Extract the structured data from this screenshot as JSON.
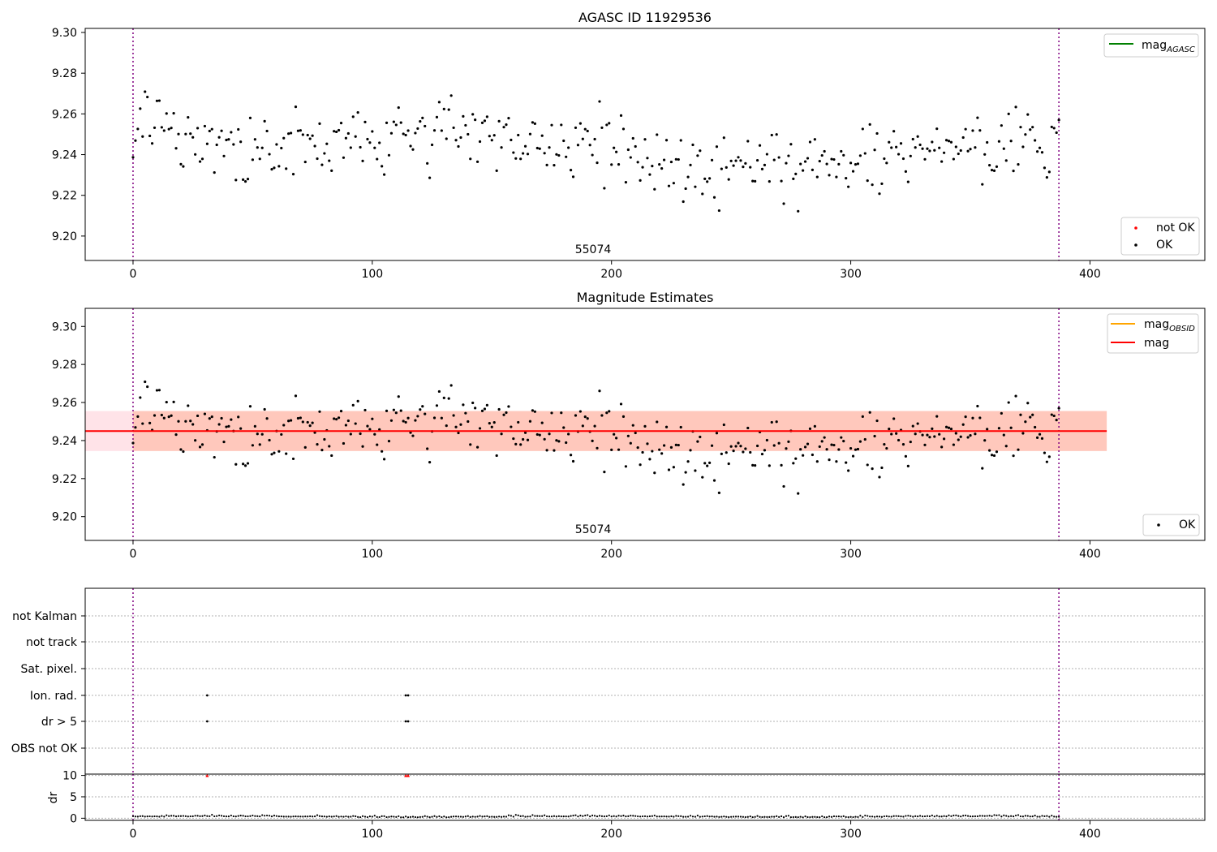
{
  "chart_data": [
    {
      "type": "scatter",
      "title": "AGASC ID 11929536",
      "xlabel": "",
      "ylabel": "",
      "xlim": [
        -20,
        448
      ],
      "ylim": [
        9.188,
        9.302
      ],
      "x_ticks": [
        0,
        100,
        200,
        300,
        400
      ],
      "y_ticks": [
        9.2,
        9.22,
        9.24,
        9.26,
        9.28,
        9.3
      ],
      "x_tick_labels": [
        "0",
        "100",
        "200",
        "300",
        "400"
      ],
      "y_tick_labels": [
        "9.20",
        "9.22",
        "9.24",
        "9.26",
        "9.28",
        "9.30"
      ],
      "vlines": [
        0,
        387
      ],
      "annotation": "55074",
      "legend_lines": [
        {
          "label": "mag",
          "sub": "AGASC",
          "color": "#008000"
        }
      ],
      "legend_points": [
        {
          "label": "not OK",
          "color": "#ff0000"
        },
        {
          "label": "OK",
          "color": "#000000"
        }
      ],
      "legend_placement": [
        "top-right",
        "bottom-right"
      ]
    },
    {
      "type": "scatter",
      "title": "Magnitude Estimates",
      "xlabel": "",
      "ylabel": "",
      "xlim": [
        -20,
        448
      ],
      "ylim": [
        9.1875,
        9.3095
      ],
      "x_ticks": [
        0,
        100,
        200,
        300,
        400
      ],
      "y_ticks": [
        9.2,
        9.22,
        9.24,
        9.26,
        9.28,
        9.3
      ],
      "x_tick_labels": [
        "0",
        "100",
        "200",
        "300",
        "400"
      ],
      "y_tick_labels": [
        "9.20",
        "9.22",
        "9.24",
        "9.26",
        "9.28",
        "9.30"
      ],
      "vlines": [
        0,
        387
      ],
      "annotation": "55074",
      "mean_mag": 9.245,
      "band_obsid": [
        9.2345,
        9.2555
      ],
      "band_obsid_x": [
        0,
        407
      ],
      "band_mag": [
        9.2345,
        9.2555
      ],
      "band_mag_x": [
        -20,
        407
      ],
      "legend_lines": [
        {
          "label": "mag",
          "sub": "OBSID",
          "color": "#ffa500"
        },
        {
          "label": "mag",
          "sub": "",
          "color": "#ff0000"
        }
      ],
      "legend_points": [
        {
          "label": "OK",
          "color": "#000000"
        }
      ],
      "legend_placement": [
        "top-right",
        "bottom-right"
      ]
    },
    {
      "type": "scatter",
      "title": "",
      "xlabel": "",
      "ylabel": "",
      "xlim": [
        -20,
        448
      ],
      "categories": [
        "not Kalman",
        "not track",
        "Sat. pixel.",
        "Ion. rad.",
        "dr > 5",
        "OBS not OK"
      ],
      "flags": [
        {
          "category": "Ion. rad.",
          "x": [
            31,
            114,
            115
          ]
        },
        {
          "category": "dr > 5",
          "x": [
            31,
            114,
            115
          ]
        }
      ],
      "vlines": [
        0,
        387
      ]
    },
    {
      "type": "scatter",
      "title": "",
      "xlabel": "",
      "ylabel": "dr",
      "xlim": [
        -20,
        448
      ],
      "ylim": [
        -0.5,
        10.3
      ],
      "x_ticks": [
        0,
        100,
        200,
        300,
        400
      ],
      "y_ticks": [
        0,
        5,
        10
      ],
      "x_tick_labels": [
        "0",
        "100",
        "200",
        "300",
        "400"
      ],
      "y_tick_labels": [
        "0",
        "5",
        "10"
      ],
      "vlines": [
        0,
        387
      ],
      "outliers": {
        "x": [
          31,
          114,
          115
        ],
        "y": [
          10,
          10,
          10
        ],
        "color": "#ff0000"
      }
    }
  ],
  "colors": {
    "ok_point": "#000000",
    "not_ok_point": "#ff0000",
    "vline": "#800080",
    "band_mag": "#ffc0cb",
    "band_obsid": "#ffa07a",
    "grid": "#b0b0b0"
  }
}
